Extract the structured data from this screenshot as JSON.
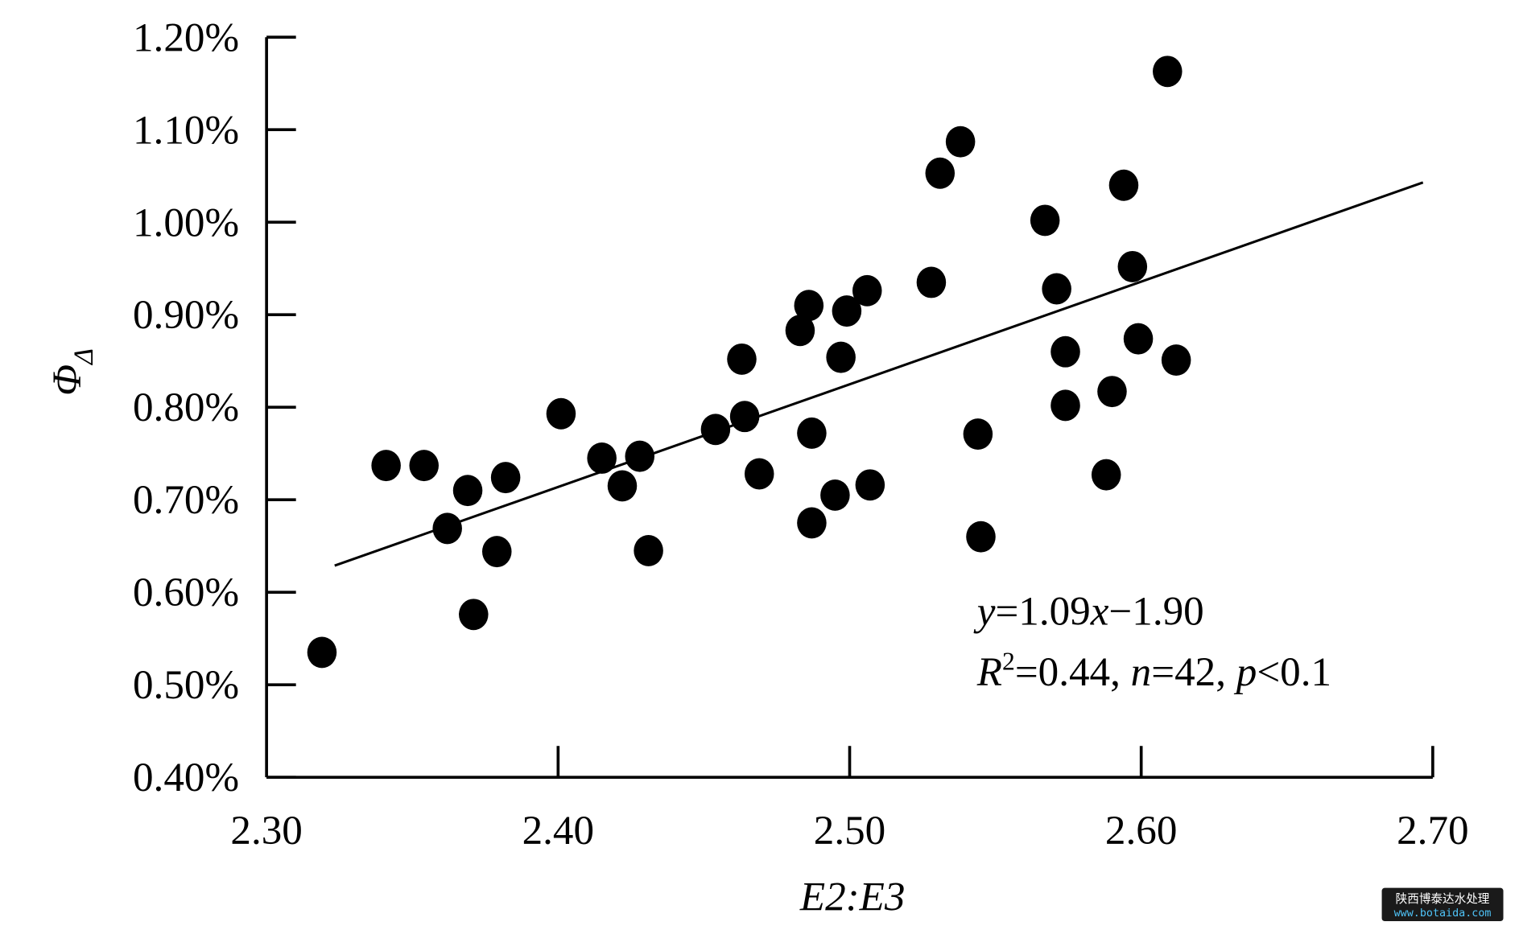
{
  "chart_data": {
    "type": "scatter",
    "xlabel": "E2:E3",
    "ylabel": "Φ",
    "ylabel_sub": "Δ",
    "xlim": [
      2.3,
      2.7
    ],
    "ylim": [
      0.4,
      1.2
    ],
    "x_ticks": [
      2.3,
      2.4,
      2.5,
      2.6,
      2.7
    ],
    "x_tick_labels": [
      "2.30",
      "2.40",
      "2.50",
      "2.60",
      "2.70"
    ],
    "y_ticks": [
      0.4,
      0.5,
      0.6,
      0.7,
      0.8,
      0.9,
      1.0,
      1.1,
      1.2
    ],
    "y_tick_labels": [
      "0.40%",
      "0.50%",
      "0.60%",
      "0.70%",
      "0.80%",
      "0.90%",
      "1.00%",
      "1.10%",
      "1.20%"
    ],
    "grid": false,
    "marker_color": "#000000",
    "points": [
      [
        2.319,
        0.535
      ],
      [
        2.341,
        0.737
      ],
      [
        2.354,
        0.737
      ],
      [
        2.362,
        0.669
      ],
      [
        2.369,
        0.71
      ],
      [
        2.371,
        0.576
      ],
      [
        2.379,
        0.644
      ],
      [
        2.382,
        0.724
      ],
      [
        2.401,
        0.793
      ],
      [
        2.415,
        0.745
      ],
      [
        2.422,
        0.715
      ],
      [
        2.428,
        0.747
      ],
      [
        2.431,
        0.645
      ],
      [
        2.454,
        0.776
      ],
      [
        2.463,
        0.852
      ],
      [
        2.464,
        0.79
      ],
      [
        2.469,
        0.728
      ],
      [
        2.483,
        0.883
      ],
      [
        2.486,
        0.91
      ],
      [
        2.487,
        0.772
      ],
      [
        2.487,
        0.675
      ],
      [
        2.495,
        0.705
      ],
      [
        2.497,
        0.854
      ],
      [
        2.499,
        0.904
      ],
      [
        2.506,
        0.926
      ],
      [
        2.507,
        0.716
      ],
      [
        2.528,
        0.935
      ],
      [
        2.531,
        1.053
      ],
      [
        2.538,
        1.087
      ],
      [
        2.544,
        0.771
      ],
      [
        2.545,
        0.66
      ],
      [
        2.567,
        1.002
      ],
      [
        2.571,
        0.928
      ],
      [
        2.574,
        0.86
      ],
      [
        2.574,
        0.802
      ],
      [
        2.588,
        0.727
      ],
      [
        2.59,
        0.817
      ],
      [
        2.594,
        1.04
      ],
      [
        2.597,
        0.952
      ],
      [
        2.599,
        0.874
      ],
      [
        2.609,
        1.163
      ],
      [
        2.612,
        0.851
      ]
    ],
    "fit": {
      "slope": 1.09,
      "intercept": -1.9,
      "x_range": [
        2.32,
        2.7
      ]
    },
    "annotations": {
      "eq_y": "y",
      "eq_rest1": "=1.09",
      "eq_x": "x",
      "eq_rest2": "−1.90",
      "r": "R",
      "r_sup": "2",
      "r_rest1": "=0.44, ",
      "n": "n",
      "r_rest2": "=42, ",
      "p": "p",
      "r_rest3": "<0.1"
    }
  },
  "watermark": {
    "line1": "陕西博泰达水处理",
    "line2": "www.botaida.com"
  }
}
